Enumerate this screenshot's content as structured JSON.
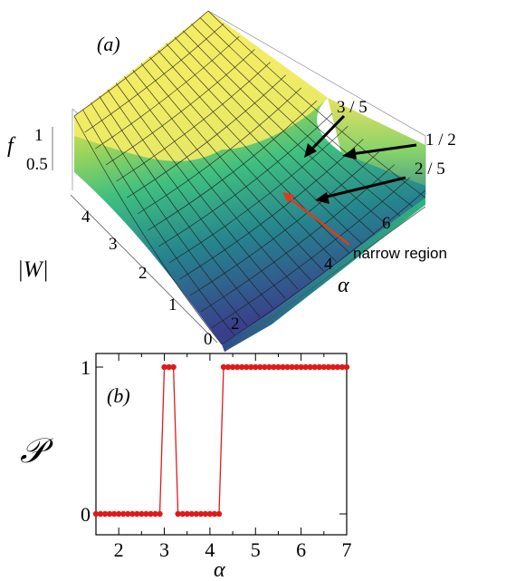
{
  "chart_data": [
    {
      "type": "surface",
      "panel_label": "(a)",
      "zlabel": "f",
      "ylabel": "|W|",
      "xlabel": "α",
      "z_ticks": [
        "0.5",
        "1"
      ],
      "y_ticks": [
        "0",
        "1",
        "2",
        "3",
        "4"
      ],
      "x_ticks": [
        "2",
        "4",
        "6"
      ],
      "annotations": [
        "3 / 5",
        "1 / 2",
        "2 / 5",
        "narrow region"
      ],
      "colors": {
        "high": "#f2ea62",
        "mid": "#35b779",
        "low": "#31688e",
        "base": "#3b3f8a",
        "arrow_black": "#000000",
        "arrow_red": "#e03a1e"
      }
    },
    {
      "type": "line",
      "panel_label": "(b)",
      "ylabel": "𝒫",
      "xlabel": "α",
      "xlim": [
        1.5,
        7
      ],
      "ylim": [
        0,
        1
      ],
      "x_ticks": [
        2,
        3,
        4,
        5,
        6,
        7
      ],
      "y_ticks": [
        0,
        1
      ],
      "x": [
        1.5,
        1.6,
        1.7,
        1.8,
        1.9,
        2.0,
        2.1,
        2.2,
        2.3,
        2.4,
        2.5,
        2.6,
        2.7,
        2.8,
        2.9,
        3.0,
        3.1,
        3.2,
        3.3,
        3.4,
        3.5,
        3.6,
        3.7,
        3.8,
        3.9,
        4.0,
        4.1,
        4.2,
        4.3,
        4.4,
        4.5,
        4.6,
        4.7,
        4.8,
        4.9,
        5.0,
        5.1,
        5.2,
        5.3,
        5.4,
        5.5,
        5.6,
        5.7,
        5.8,
        5.9,
        6.0,
        6.1,
        6.2,
        6.3,
        6.4,
        6.5,
        6.6,
        6.7,
        6.8,
        6.9,
        7.0
      ],
      "y": [
        0,
        0,
        0,
        0,
        0,
        0,
        0,
        0,
        0,
        0,
        0,
        0,
        0,
        0,
        0,
        1,
        1,
        1,
        0,
        0,
        0,
        0,
        0,
        0,
        0,
        0,
        0,
        0,
        1,
        1,
        1,
        1,
        1,
        1,
        1,
        1,
        1,
        1,
        1,
        1,
        1,
        1,
        1,
        1,
        1,
        1,
        1,
        1,
        1,
        1,
        1,
        1,
        1,
        1,
        1,
        1
      ],
      "series_color": "#e01a1a"
    }
  ]
}
